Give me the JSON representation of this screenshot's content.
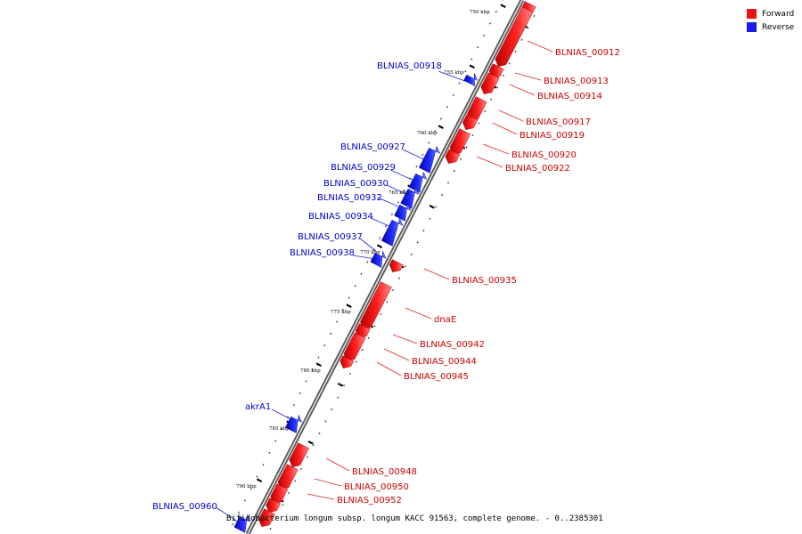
{
  "legend": {
    "forward": {
      "label": "Forward",
      "color": "#ee1111"
    },
    "reverse": {
      "label": "Reverse",
      "color": "#1a1aee"
    }
  },
  "caption": "Bifidobacterium longum subsp. longum KACC 91563, complete genome. - 0..2385301",
  "ticks": [
    "750 kbp",
    "755 kbp",
    "760 kbp",
    "765 kbp",
    "770 kbp",
    "775 kbp",
    "780 kbp",
    "785 kbp",
    "790 kbp"
  ],
  "forward_genes": [
    "BLNIAS_00912",
    "BLNIAS_00913",
    "BLNIAS_00914",
    "BLNIAS_00917",
    "BLNIAS_00919",
    "BLNIAS_00920",
    "BLNIAS_00922",
    "BLNIAS_00935",
    "dnaE",
    "BLNIAS_00942",
    "BLNIAS_00944",
    "BLNIAS_00945",
    "BLNIAS_00948",
    "BLNIAS_00950",
    "BLNIAS_00952"
  ],
  "reverse_genes": [
    "BLNIAS_00918",
    "BLNIAS_00927",
    "BLNIAS_00929",
    "BLNIAS_00930",
    "BLNIAS_00932",
    "BLNIAS_00934",
    "BLNIAS_00937",
    "BLNIAS_00938",
    "akrA1",
    "BLNIAS_00960"
  ]
}
